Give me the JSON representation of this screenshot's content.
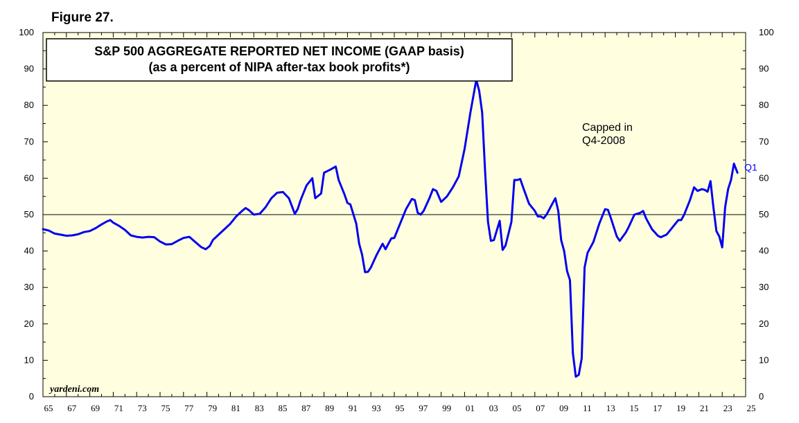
{
  "figure_label": "Figure 27.",
  "chart_data": {
    "type": "line",
    "title": "S&P 500 AGGREGATE REPORTED NET INCOME (GAAP basis)",
    "subtitle": "(as a percent of NIPA after-tax book profits*)",
    "source": "yardeni.com",
    "annotation": [
      "Capped in",
      "Q4-2008"
    ],
    "end_label": "Q1",
    "ylim": [
      0,
      100
    ],
    "y_ticks": [
      0,
      10,
      20,
      30,
      40,
      50,
      60,
      70,
      80,
      90,
      100
    ],
    "xlim": [
      1965,
      2025
    ],
    "x_tick_labels": [
      "65",
      "67",
      "69",
      "71",
      "73",
      "75",
      "77",
      "79",
      "81",
      "83",
      "85",
      "87",
      "89",
      "91",
      "93",
      "95",
      "97",
      "99",
      "01",
      "03",
      "05",
      "07",
      "09",
      "11",
      "13",
      "15",
      "17",
      "19",
      "21",
      "23",
      "25"
    ],
    "reference_line": 50,
    "colors": {
      "line": "#0000ee",
      "plot_bg": "#ffffe0",
      "reference": "#000000"
    },
    "series": [
      {
        "name": "S&P 500 reported net income as % of NIPA after-tax book profits",
        "points": [
          [
            1965.0,
            46.0
          ],
          [
            1965.5,
            45.6
          ],
          [
            1966.0,
            44.8
          ],
          [
            1966.5,
            44.5
          ],
          [
            1967.0,
            44.2
          ],
          [
            1967.5,
            44.3
          ],
          [
            1968.0,
            44.6
          ],
          [
            1968.5,
            45.2
          ],
          [
            1969.0,
            45.5
          ],
          [
            1969.5,
            46.3
          ],
          [
            1970.0,
            47.3
          ],
          [
            1970.5,
            48.2
          ],
          [
            1970.75,
            48.5
          ],
          [
            1971.0,
            47.8
          ],
          [
            1971.5,
            46.9
          ],
          [
            1972.0,
            45.8
          ],
          [
            1972.5,
            44.3
          ],
          [
            1973.0,
            43.9
          ],
          [
            1973.5,
            43.7
          ],
          [
            1974.0,
            43.9
          ],
          [
            1974.5,
            43.8
          ],
          [
            1975.0,
            42.6
          ],
          [
            1975.5,
            41.8
          ],
          [
            1976.0,
            41.9
          ],
          [
            1976.5,
            42.8
          ],
          [
            1977.0,
            43.6
          ],
          [
            1977.5,
            43.9
          ],
          [
            1978.0,
            42.5
          ],
          [
            1978.5,
            41.1
          ],
          [
            1978.9,
            40.5
          ],
          [
            1979.25,
            41.4
          ],
          [
            1979.5,
            43.0
          ],
          [
            1980.0,
            44.5
          ],
          [
            1980.5,
            46.0
          ],
          [
            1981.0,
            47.5
          ],
          [
            1981.5,
            49.5
          ],
          [
            1982.0,
            51.0
          ],
          [
            1982.3,
            51.8
          ],
          [
            1982.6,
            51.2
          ],
          [
            1983.0,
            50.0
          ],
          [
            1983.5,
            50.2
          ],
          [
            1984.0,
            52.0
          ],
          [
            1984.5,
            54.5
          ],
          [
            1985.0,
            56.0
          ],
          [
            1985.5,
            56.2
          ],
          [
            1986.0,
            54.5
          ],
          [
            1986.5,
            50.2
          ],
          [
            1986.75,
            51.5
          ],
          [
            1987.0,
            54.0
          ],
          [
            1987.5,
            58.0
          ],
          [
            1988.0,
            60.0
          ],
          [
            1988.25,
            54.5
          ],
          [
            1988.75,
            55.8
          ],
          [
            1989.0,
            61.5
          ],
          [
            1989.5,
            62.3
          ],
          [
            1990.0,
            63.2
          ],
          [
            1990.25,
            59.5
          ],
          [
            1990.75,
            55.5
          ],
          [
            1991.0,
            53.2
          ],
          [
            1991.25,
            52.8
          ],
          [
            1991.75,
            47.5
          ],
          [
            1992.0,
            42.0
          ],
          [
            1992.25,
            39.0
          ],
          [
            1992.5,
            34.2
          ],
          [
            1992.75,
            34.3
          ],
          [
            1993.0,
            35.5
          ],
          [
            1993.5,
            39.0
          ],
          [
            1994.0,
            42.0
          ],
          [
            1994.25,
            40.5
          ],
          [
            1994.5,
            42.0
          ],
          [
            1994.75,
            43.5
          ],
          [
            1995.0,
            43.6
          ],
          [
            1995.5,
            47.5
          ],
          [
            1996.0,
            51.5
          ],
          [
            1996.5,
            54.3
          ],
          [
            1996.75,
            54.0
          ],
          [
            1997.0,
            50.5
          ],
          [
            1997.25,
            50.0
          ],
          [
            1997.5,
            51.0
          ],
          [
            1998.0,
            54.5
          ],
          [
            1998.3,
            57.0
          ],
          [
            1998.6,
            56.5
          ],
          [
            1999.0,
            53.5
          ],
          [
            1999.5,
            55.0
          ],
          [
            2000.0,
            57.5
          ],
          [
            2000.5,
            60.5
          ],
          [
            2001.0,
            68.0
          ],
          [
            2001.5,
            78.0
          ],
          [
            2002.0,
            87.0
          ],
          [
            2002.25,
            84.0
          ],
          [
            2002.5,
            78.0
          ],
          [
            2002.75,
            62.0
          ],
          [
            2003.0,
            48.0
          ],
          [
            2003.25,
            42.8
          ],
          [
            2003.5,
            43.0
          ],
          [
            2004.0,
            48.3
          ],
          [
            2004.25,
            40.3
          ],
          [
            2004.5,
            41.5
          ],
          [
            2005.0,
            48.0
          ],
          [
            2005.25,
            59.5
          ],
          [
            2005.5,
            59.5
          ],
          [
            2005.75,
            59.8
          ],
          [
            2006.0,
            57.5
          ],
          [
            2006.5,
            53.0
          ],
          [
            2007.0,
            51.0
          ],
          [
            2007.25,
            49.5
          ],
          [
            2007.5,
            49.5
          ],
          [
            2007.75,
            49.0
          ],
          [
            2008.0,
            50.0
          ],
          [
            2008.5,
            53.0
          ],
          [
            2008.75,
            54.5
          ],
          [
            2009.0,
            51.0
          ],
          [
            2009.25,
            43.0
          ],
          [
            2009.5,
            40.0
          ],
          [
            2009.75,
            34.5
          ],
          [
            2010.0,
            32.0
          ],
          [
            2010.25,
            12.0
          ],
          [
            2010.5,
            5.5
          ],
          [
            2010.75,
            6.0
          ],
          [
            2011.0,
            10.5
          ],
          [
            2011.25,
            35.5
          ],
          [
            2011.5,
            39.5
          ],
          [
            2011.75,
            41.0
          ],
          [
            2012.0,
            42.5
          ],
          [
            2012.5,
            47.5
          ],
          [
            2013.0,
            51.5
          ],
          [
            2013.25,
            51.3
          ],
          [
            2013.5,
            49.0
          ],
          [
            2014.0,
            44.0
          ],
          [
            2014.25,
            42.8
          ],
          [
            2014.75,
            45.0
          ],
          [
            2015.0,
            46.5
          ],
          [
            2015.5,
            50.0
          ],
          [
            2016.0,
            50.5
          ],
          [
            2016.25,
            51.0
          ],
          [
            2016.5,
            49.0
          ],
          [
            2017.0,
            46.0
          ],
          [
            2017.5,
            44.2
          ],
          [
            2017.75,
            43.8
          ],
          [
            2018.25,
            44.5
          ],
          [
            2018.75,
            46.5
          ],
          [
            2019.25,
            48.5
          ],
          [
            2019.5,
            48.5
          ],
          [
            2019.75,
            50.0
          ],
          [
            2020.25,
            54.0
          ],
          [
            2020.6,
            57.5
          ],
          [
            2020.9,
            56.5
          ],
          [
            2021.25,
            57.0
          ],
          [
            2021.5,
            56.8
          ],
          [
            2021.75,
            56.3
          ],
          [
            2022.0,
            59.2
          ],
          [
            2022.25,
            52.0
          ],
          [
            2022.5,
            45.5
          ],
          [
            2022.75,
            44.0
          ],
          [
            2023.0,
            41.0
          ],
          [
            2023.25,
            52.0
          ],
          [
            2023.5,
            57.0
          ],
          [
            2023.75,
            59.5
          ],
          [
            2024.0,
            64.0
          ],
          [
            2024.3,
            61.5
          ]
        ]
      }
    ]
  }
}
